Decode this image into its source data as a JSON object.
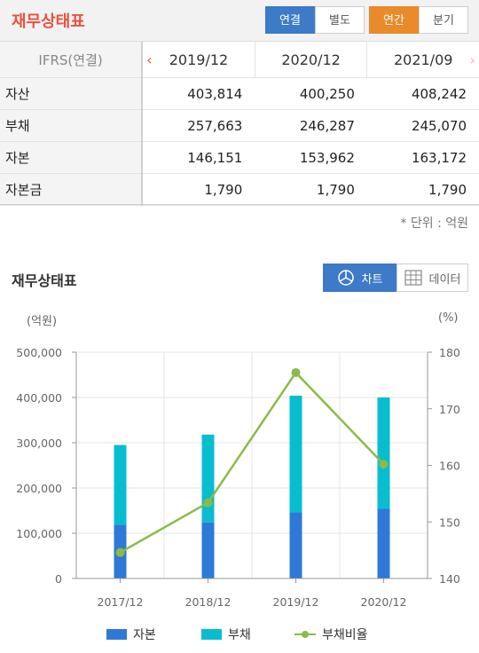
{
  "header": {
    "title": "재무상태표",
    "btn_consolidated": "연결",
    "btn_separate": "별도",
    "btn_annual": "연간",
    "btn_quarterly": "분기"
  },
  "table": {
    "corner": "IFRS(연결)",
    "columns": [
      "2019/12",
      "2020/12",
      "2021/09"
    ],
    "rows": [
      {
        "label": "자산",
        "values": [
          "403,814",
          "400,250",
          "408,242"
        ]
      },
      {
        "label": "부채",
        "values": [
          "257,663",
          "246,287",
          "245,070"
        ]
      },
      {
        "label": "자본",
        "values": [
          "146,151",
          "153,962",
          "163,172"
        ]
      },
      {
        "label": "자본금",
        "values": [
          "1,790",
          "1,790",
          "1,790"
        ]
      }
    ],
    "unit_note": "* 단위 : 억원"
  },
  "chart_section": {
    "title": "재무상태표",
    "toggle_chart": "차트",
    "toggle_data": "데이터",
    "left_unit": "(억원)",
    "right_unit": "(%)"
  },
  "chart_data": {
    "type": "bar",
    "stacked": true,
    "categories": [
      "2017/12",
      "2018/12",
      "2019/12",
      "2020/12"
    ],
    "series": [
      {
        "name": "자본",
        "type": "bar",
        "axis": "left",
        "color": "#2e79d8",
        "values": [
          119000,
          124000,
          146000,
          154000
        ]
      },
      {
        "name": "부채",
        "type": "bar",
        "axis": "left",
        "color": "#09bdd0",
        "values": [
          176000,
          194000,
          258000,
          246000
        ]
      },
      {
        "name": "부채비율",
        "type": "line",
        "axis": "right",
        "color": "#8bbb45",
        "values": [
          144.6,
          153.4,
          176.4,
          160.2
        ]
      }
    ],
    "y_left": {
      "min": 0,
      "max": 500000,
      "ticks": [
        "0",
        "100,000",
        "200,000",
        "300,000",
        "400,000",
        "500,000"
      ]
    },
    "y_right": {
      "min": 140,
      "max": 180,
      "ticks": [
        "140",
        "150",
        "160",
        "170",
        "180"
      ]
    },
    "grid": true,
    "legend": "bottom"
  }
}
